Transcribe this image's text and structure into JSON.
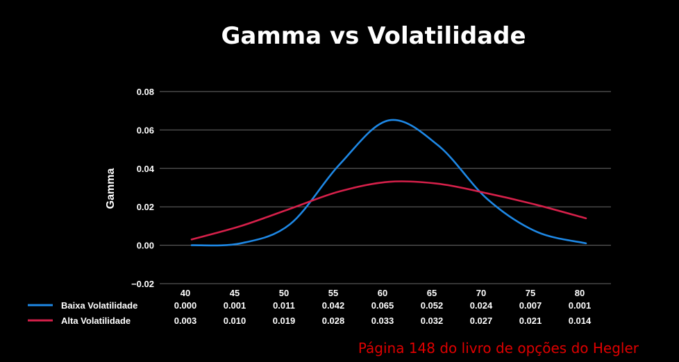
{
  "chart_data": {
    "type": "line",
    "title": "Gamma vs Volatilidade",
    "xlabel": "",
    "ylabel": "Gamma",
    "ylim": [
      -0.02,
      0.08
    ],
    "yticks": [
      "0.08",
      "0.06",
      "0.04",
      "0.02",
      "0.00",
      "−0.02"
    ],
    "categories": [
      "40",
      "45",
      "50",
      "55",
      "60",
      "65",
      "70",
      "75",
      "80"
    ],
    "grid": true,
    "legend": "data-table-below",
    "series": [
      {
        "name": "Baixa Volatilidade",
        "color": "#1e88e5",
        "values": [
          0.0,
          0.001,
          0.011,
          0.042,
          0.065,
          0.052,
          0.024,
          0.007,
          0.001
        ],
        "labels": [
          "0.000",
          "0.001",
          "0.011",
          "0.042",
          "0.065",
          "0.052",
          "0.024",
          "0.007",
          "0.001"
        ]
      },
      {
        "name": "Alta Volatilidade",
        "color": "#d6204a",
        "values": [
          0.003,
          0.01,
          0.019,
          0.028,
          0.033,
          0.032,
          0.027,
          0.021,
          0.014
        ],
        "labels": [
          "0.003",
          "0.010",
          "0.019",
          "0.028",
          "0.033",
          "0.032",
          "0.027",
          "0.021",
          "0.014"
        ]
      }
    ]
  },
  "source_note": "Página 148 do livro de opções do Hegler",
  "colors": {
    "background": "#000000",
    "grid": "#6b6b6b",
    "text": "#ffffff",
    "source_note": "#e00000"
  }
}
